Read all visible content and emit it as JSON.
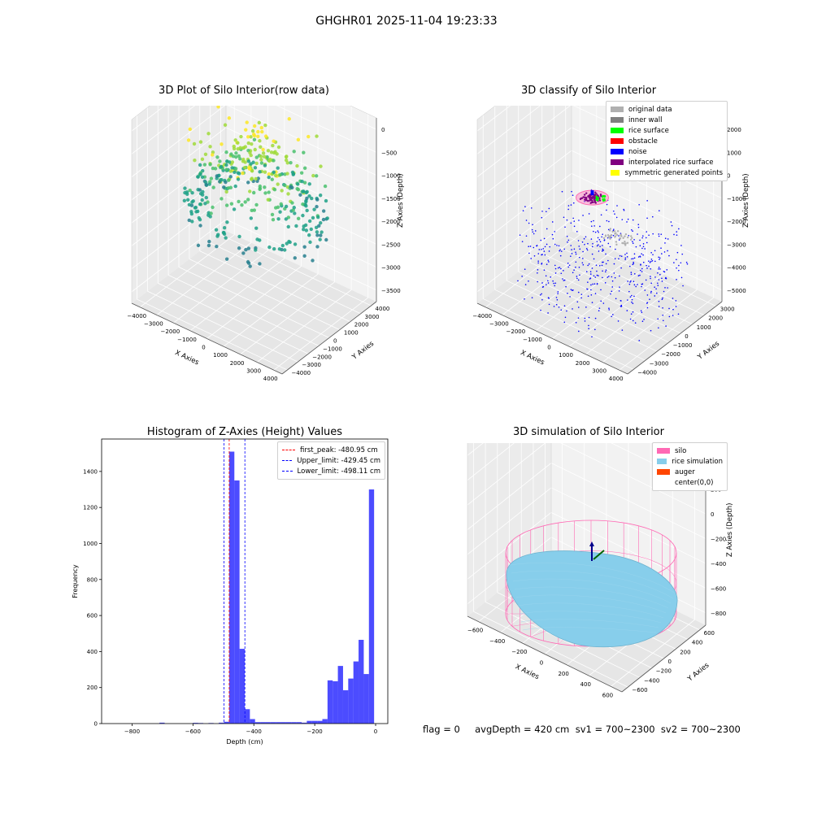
{
  "figure": {
    "suptitle": "GHGHR01 2025-11-04 19:23:33",
    "footer": "flag = 0     avgDepth = 420 cm  sv1 = 700~2300  sv2 = 700~2300"
  },
  "chart_data": [
    {
      "type": "scatter",
      "projection": "3d",
      "title": "3D Plot of Silo Interior(row data)",
      "xlabel": "X Axies",
      "ylabel": "Y Axies",
      "zlabel": "Z Axies (Depth)",
      "x_ticks": [
        "−4000",
        "−3000",
        "−2000",
        "−1000",
        "0",
        "1000",
        "2000",
        "3000",
        "4000"
      ],
      "y_ticks": [
        "−4000",
        "−3000",
        "−2000",
        "−1000",
        "0",
        "1000",
        "2000",
        "3000",
        "4000"
      ],
      "z_ticks": [
        "−3500",
        "−3000",
        "−2500",
        "−2000",
        "−1500",
        "−1000",
        "−500",
        "0"
      ],
      "xlim": [
        -4000,
        4000
      ],
      "ylim": [
        -4000,
        4000
      ],
      "zlim": [
        -3800,
        0
      ],
      "colormap": "viridis",
      "grid": true
    },
    {
      "type": "scatter",
      "projection": "3d",
      "title": "3D classify of Silo Interior",
      "xlabel": "X Axies",
      "ylabel": "Y Axies",
      "zlabel": "Z Axies (Depth)",
      "x_ticks": [
        "−4000",
        "−3000",
        "−2000",
        "−1000",
        "0",
        "1000",
        "2000",
        "3000",
        "4000"
      ],
      "y_ticks": [
        "−4000",
        "−3000",
        "−2000",
        "−1000",
        "0",
        "1000",
        "2000",
        "3000"
      ],
      "z_ticks": [
        "−5000",
        "−4000",
        "−3000",
        "−2000",
        "−1000",
        "0",
        "1000",
        "2000"
      ],
      "legend_position": "top-right",
      "legend": [
        {
          "label": "original data",
          "color": "#b0b0b0"
        },
        {
          "label": "inner wall",
          "color": "#808080"
        },
        {
          "label": "rice surface",
          "color": "#00ff00"
        },
        {
          "label": "obstacle",
          "color": "#ff0000"
        },
        {
          "label": "noise",
          "color": "#0000ff"
        },
        {
          "label": "interpolated rice surface",
          "color": "#800080"
        },
        {
          "label": "symmetric generated points",
          "color": "#ffff00"
        }
      ],
      "grid": true
    },
    {
      "type": "bar",
      "title": "Histogram of Z-Axies (Height) Values",
      "xlabel": "Depth (cm)",
      "ylabel": "Frequency",
      "xlim": [
        -900,
        40
      ],
      "ylim": [
        0,
        1580
      ],
      "x_ticks": [
        -800,
        -600,
        -400,
        -200,
        0
      ],
      "y_ticks": [
        0,
        200,
        400,
        600,
        800,
        1000,
        1200,
        1400
      ],
      "bin_width": 17,
      "bar_color": "#0000ff",
      "bins": [
        {
          "x0": -710,
          "count": 5
        },
        {
          "x0": -600,
          "count": 4
        },
        {
          "x0": -583,
          "count": 3
        },
        {
          "x0": -549,
          "count": 3
        },
        {
          "x0": -515,
          "count": 5
        },
        {
          "x0": -498,
          "count": 10
        },
        {
          "x0": -481,
          "count": 1510
        },
        {
          "x0": -464,
          "count": 1350
        },
        {
          "x0": -447,
          "count": 415
        },
        {
          "x0": -430,
          "count": 80
        },
        {
          "x0": -413,
          "count": 25
        },
        {
          "x0": -396,
          "count": 8
        },
        {
          "x0": -379,
          "count": 8
        },
        {
          "x0": -362,
          "count": 8
        },
        {
          "x0": -345,
          "count": 8
        },
        {
          "x0": -328,
          "count": 8
        },
        {
          "x0": -311,
          "count": 8
        },
        {
          "x0": -294,
          "count": 8
        },
        {
          "x0": -277,
          "count": 8
        },
        {
          "x0": -260,
          "count": 8
        },
        {
          "x0": -243,
          "count": 5
        },
        {
          "x0": -226,
          "count": 15
        },
        {
          "x0": -209,
          "count": 15
        },
        {
          "x0": -192,
          "count": 15
        },
        {
          "x0": -175,
          "count": 25
        },
        {
          "x0": -158,
          "count": 240
        },
        {
          "x0": -141,
          "count": 235
        },
        {
          "x0": -124,
          "count": 320
        },
        {
          "x0": -107,
          "count": 185
        },
        {
          "x0": -90,
          "count": 250
        },
        {
          "x0": -73,
          "count": 345
        },
        {
          "x0": -56,
          "count": 465
        },
        {
          "x0": -39,
          "count": 275
        },
        {
          "x0": -22,
          "count": 1300
        }
      ],
      "vlines": [
        {
          "x": -480.95,
          "label": "first_peak: -480.95 cm",
          "color": "#ff0000"
        },
        {
          "x": -429.45,
          "label": "Upper_limit: -429.45 cm",
          "color": "#0000ff"
        },
        {
          "x": -498.11,
          "label": "Lower_limit: -498.11 cm",
          "color": "#0000ff"
        }
      ],
      "legend_position": "top-right",
      "grid": false
    },
    {
      "type": "scatter",
      "projection": "3d",
      "title": "3D simulation of Silo Interior",
      "xlabel": "X Axies",
      "ylabel": "Y Axies",
      "zlabel": "Z Axies (Depth)",
      "x_ticks": [
        "−600",
        "−400",
        "−200",
        "0",
        "200",
        "400",
        "600"
      ],
      "y_ticks": [
        "−600",
        "−400",
        "−200",
        "0",
        "200",
        "400",
        "600"
      ],
      "z_ticks": [
        "−800",
        "−600",
        "−400",
        "−200",
        "0",
        "200",
        "400"
      ],
      "legend_position": "top-right",
      "legend": [
        {
          "label": "silo",
          "color": "#ff69b4"
        },
        {
          "label": "rice simulation",
          "color": "#87ceeb"
        },
        {
          "label": "auger",
          "color": "#ff4500"
        },
        {
          "label": "center(0,0)",
          "color": ""
        }
      ],
      "grid": true
    }
  ]
}
